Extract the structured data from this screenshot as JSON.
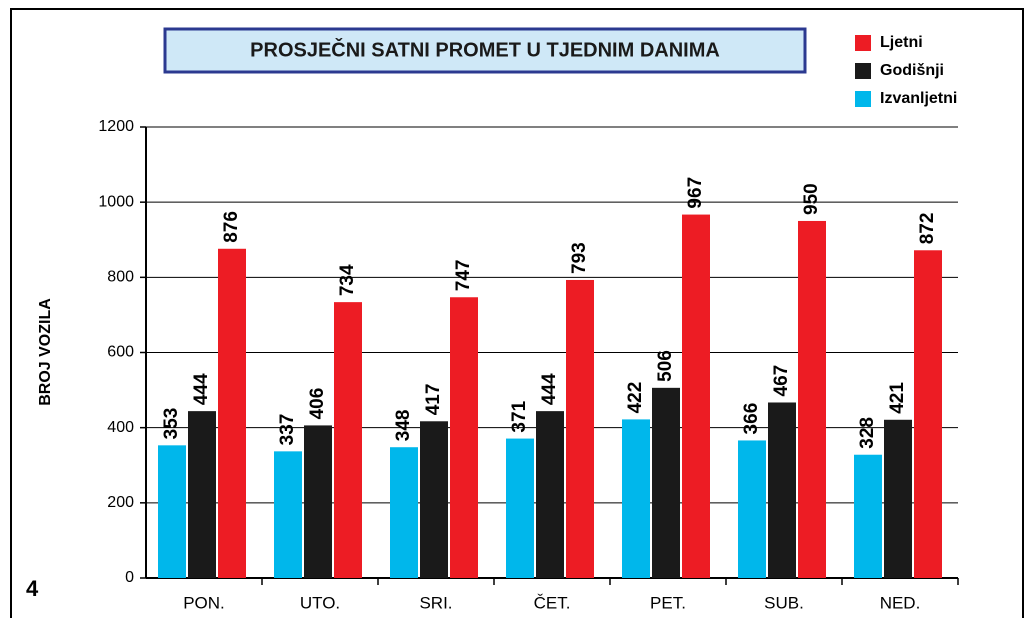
{
  "chart_data": {
    "type": "bar",
    "title": "PROSJEČNI SATNI PROMET U TJEDNIM DANIMA",
    "y_label": "BROJ VOZILA",
    "annotation": "4",
    "categories": [
      "PON.",
      "UTO.",
      "SRI.",
      "ČET.",
      "PET.",
      "SUB.",
      "NED."
    ],
    "series": [
      {
        "name": "Ljetni",
        "color": "#ed1c24",
        "values": [
          876,
          734,
          747,
          793,
          967,
          950,
          872
        ]
      },
      {
        "name": "Godišnji",
        "color": "#1a1a1a",
        "values": [
          444,
          406,
          417,
          444,
          506,
          467,
          421
        ]
      },
      {
        "name": "Izvanljetni",
        "color": "#00b7eb",
        "values": [
          353,
          337,
          348,
          371,
          422,
          366,
          328
        ]
      }
    ],
    "ylim": [
      0,
      1200
    ],
    "yticks": [
      0,
      200,
      400,
      600,
      800,
      1000,
      1200
    ],
    "grid": true,
    "legend": "top-right"
  }
}
